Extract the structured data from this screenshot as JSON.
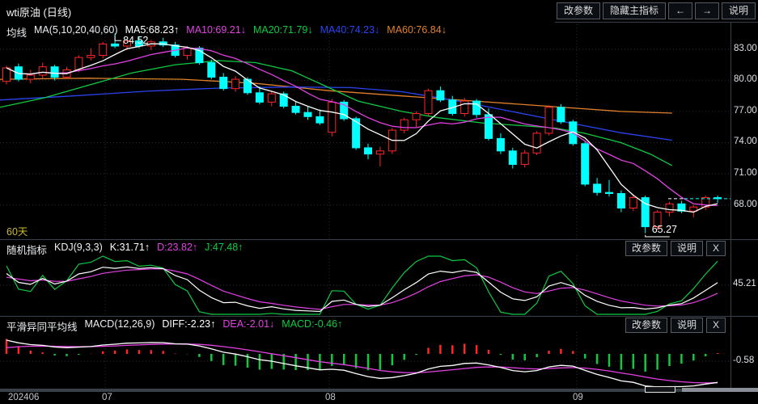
{
  "window": {
    "title": "wti原油 (日线)"
  },
  "toolbar": {
    "buttons": [
      "改参数",
      "隐藏主指标",
      "←",
      "→",
      "说明"
    ]
  },
  "main_pane": {
    "indicator_name": "均线",
    "formula": "MA(5,10,20,40,60)",
    "legend": [
      {
        "label": "MA5:68.23",
        "arrow": "↑",
        "color": "#ffffff"
      },
      {
        "label": "MA10:69.21",
        "arrow": "↓",
        "color": "#e341e3"
      },
      {
        "label": "MA20:71.79",
        "arrow": "↓",
        "color": "#0fca41"
      },
      {
        "label": "MA40:74.23",
        "arrow": "↓",
        "color": "#2b43f0"
      },
      {
        "label": "MA60:76.84",
        "arrow": "↓",
        "color": "#e0802a"
      }
    ],
    "range_label": "60天",
    "high_label": "84.52",
    "low_label": "65.27",
    "y_ticks": [
      "83.00",
      "80.00",
      "77.00",
      "74.00",
      "71.00",
      "68.00"
    ]
  },
  "kdj_pane": {
    "indicator_name": "随机指标",
    "formula": "KDJ(9,3,3)",
    "legend": [
      {
        "label": "K:31.71",
        "arrow": "↑",
        "color": "#ffffff"
      },
      {
        "label": "D:23.82",
        "arrow": "↑",
        "color": "#e341e3"
      },
      {
        "label": "J:47.48",
        "arrow": "↑",
        "color": "#0fca41"
      }
    ],
    "buttons": [
      "改参数",
      "说明",
      "X"
    ],
    "axis_value": "45.21"
  },
  "macd_pane": {
    "indicator_name": "平滑异同平均线",
    "formula": "MACD(12,26,9)",
    "legend": [
      {
        "label": "DIFF:-2.23",
        "arrow": "↑",
        "color": "#ffffff"
      },
      {
        "label": "DEA:-2.01",
        "arrow": "↓",
        "color": "#e341e3"
      },
      {
        "label": "MACD:-0.46",
        "arrow": "↑",
        "color": "#0fca41"
      }
    ],
    "buttons": [
      "改参数",
      "说明",
      "X"
    ],
    "axis_value": "-0.58"
  },
  "x_axis": {
    "ticks": [
      {
        "label": "202406",
        "x": 10
      },
      {
        "label": "07",
        "x": 126
      },
      {
        "label": "08",
        "x": 402
      },
      {
        "label": "09",
        "x": 708
      }
    ],
    "gridline_x": [
      130,
      407,
      713
    ]
  },
  "chart_data": {
    "type": "candlestick",
    "symbol": "wti原油",
    "period": "日线",
    "visible_bars": 60,
    "price_ticks": [
      83,
      80,
      77,
      74,
      71,
      68
    ],
    "high_point": 84.52,
    "low_point": 65.27,
    "ohlc": [
      [
        79.9,
        81.4,
        79.6,
        81.2
      ],
      [
        81.3,
        81.6,
        79.9,
        80.1
      ],
      [
        80.1,
        81.0,
        79.7,
        80.5
      ],
      [
        80.5,
        81.7,
        80.2,
        81.3
      ],
      [
        81.3,
        81.5,
        80.0,
        80.3
      ],
      [
        80.3,
        81.3,
        80.1,
        81.0
      ],
      [
        81.0,
        82.4,
        80.8,
        82.2
      ],
      [
        82.2,
        83.1,
        81.9,
        82.4
      ],
      [
        82.4,
        83.7,
        82.1,
        83.5
      ],
      [
        83.5,
        84.52,
        83.1,
        83.3
      ],
      [
        83.3,
        84.0,
        82.9,
        83.8
      ],
      [
        83.8,
        84.2,
        83.1,
        83.3
      ],
      [
        83.3,
        83.9,
        82.9,
        83.7
      ],
      [
        83.7,
        84.1,
        83.2,
        83.4
      ],
      [
        83.4,
        83.7,
        82.2,
        82.4
      ],
      [
        82.4,
        83.3,
        82.0,
        83.1
      ],
      [
        83.1,
        83.3,
        81.5,
        81.7
      ],
      [
        81.7,
        82.0,
        80.1,
        80.3
      ],
      [
        80.3,
        80.7,
        79.0,
        79.2
      ],
      [
        79.2,
        80.4,
        78.9,
        80.1
      ],
      [
        80.1,
        80.3,
        78.6,
        78.8
      ],
      [
        78.8,
        79.4,
        77.7,
        77.9
      ],
      [
        77.9,
        79.0,
        77.5,
        78.7
      ],
      [
        78.7,
        78.9,
        77.3,
        77.5
      ],
      [
        77.5,
        78.0,
        76.7,
        76.9
      ],
      [
        76.9,
        77.5,
        76.2,
        76.5
      ],
      [
        76.5,
        77.2,
        75.7,
        75.9
      ],
      [
        75.0,
        78.2,
        74.6,
        77.9
      ],
      [
        77.9,
        78.1,
        76.1,
        76.3
      ],
      [
        76.3,
        76.5,
        73.3,
        73.5
      ],
      [
        73.5,
        73.9,
        72.4,
        72.9
      ],
      [
        72.9,
        73.6,
        71.7,
        73.2
      ],
      [
        73.2,
        75.4,
        72.9,
        75.2
      ],
      [
        75.2,
        76.4,
        74.9,
        76.2
      ],
      [
        76.2,
        77.0,
        75.5,
        76.8
      ],
      [
        76.8,
        79.2,
        76.6,
        79.0
      ],
      [
        79.0,
        79.4,
        77.9,
        78.1
      ],
      [
        78.1,
        78.5,
        76.6,
        76.8
      ],
      [
        76.8,
        78.3,
        76.5,
        78.0
      ],
      [
        78.0,
        78.2,
        76.4,
        76.7
      ],
      [
        76.7,
        77.3,
        74.2,
        74.4
      ],
      [
        74.4,
        74.9,
        72.9,
        73.2
      ],
      [
        73.2,
        73.5,
        71.5,
        71.9
      ],
      [
        71.9,
        73.3,
        71.6,
        73.0
      ],
      [
        73.0,
        75.1,
        72.8,
        74.9
      ],
      [
        74.9,
        77.6,
        74.7,
        77.4
      ],
      [
        77.4,
        77.7,
        75.8,
        76.0
      ],
      [
        76.0,
        76.2,
        73.7,
        73.9
      ],
      [
        73.9,
        74.1,
        69.8,
        70.0
      ],
      [
        70.0,
        70.6,
        68.9,
        69.2
      ],
      [
        69.2,
        70.4,
        68.8,
        69.1
      ],
      [
        69.1,
        69.4,
        67.3,
        67.7
      ],
      [
        67.7,
        69.0,
        67.4,
        68.7
      ],
      [
        68.7,
        68.9,
        65.27,
        65.9
      ],
      [
        65.9,
        67.5,
        65.6,
        67.3
      ],
      [
        67.3,
        68.3,
        66.9,
        68.1
      ],
      [
        68.1,
        68.4,
        67.2,
        67.4
      ],
      [
        67.4,
        68.0,
        66.8,
        67.8
      ],
      [
        67.8,
        68.9,
        67.5,
        68.7
      ],
      [
        68.7,
        68.9,
        68.2,
        68.6
      ]
    ],
    "overlays": {
      "ma60_points": [
        [
          0,
          80.1
        ],
        [
          0.12,
          80.2
        ],
        [
          0.25,
          80.1
        ],
        [
          0.35,
          79.7
        ],
        [
          0.45,
          79.0
        ],
        [
          0.55,
          78.5
        ],
        [
          0.65,
          78.0
        ],
        [
          0.75,
          77.5
        ],
        [
          0.85,
          77.0
        ],
        [
          0.92,
          76.84
        ]
      ],
      "ma40_points": [
        [
          0,
          78.1
        ],
        [
          0.1,
          78.5
        ],
        [
          0.2,
          78.95
        ],
        [
          0.3,
          79.25
        ],
        [
          0.4,
          79.35
        ],
        [
          0.48,
          79.3
        ],
        [
          0.55,
          78.9
        ],
        [
          0.62,
          78.1
        ],
        [
          0.7,
          77.0
        ],
        [
          0.78,
          75.9
        ],
        [
          0.85,
          74.95
        ],
        [
          0.92,
          74.23
        ]
      ],
      "ma20_points": [
        [
          0,
          77.4
        ],
        [
          0.06,
          78.3
        ],
        [
          0.12,
          79.5
        ],
        [
          0.18,
          80.7
        ],
        [
          0.24,
          81.5
        ],
        [
          0.3,
          81.9
        ],
        [
          0.35,
          81.7
        ],
        [
          0.4,
          80.9
        ],
        [
          0.45,
          79.3
        ],
        [
          0.49,
          78.0
        ],
        [
          0.55,
          77.0
        ],
        [
          0.6,
          76.4
        ],
        [
          0.66,
          75.9
        ],
        [
          0.72,
          75.6
        ],
        [
          0.76,
          75.4
        ],
        [
          0.8,
          74.9
        ],
        [
          0.85,
          74.0
        ],
        [
          0.89,
          72.9
        ],
        [
          0.92,
          71.79
        ]
      ]
    },
    "colors": {
      "up": "#ff2626",
      "down": "#00ffff",
      "ma5": "#ffffff",
      "ma10": "#e341e3",
      "ma20": "#0fca41",
      "ma40": "#2b43f0",
      "ma60": "#e0802a",
      "kdj_k": "#ffffff",
      "kdj_d": "#e341e3",
      "kdj_j": "#0fca41",
      "diff": "#ffffff",
      "dea": "#e341e3",
      "hist_pos": "#ff2626",
      "hist_neg": "#0fca41",
      "last_price_dash": "#00ffff",
      "marker": "#ffffff"
    }
  }
}
